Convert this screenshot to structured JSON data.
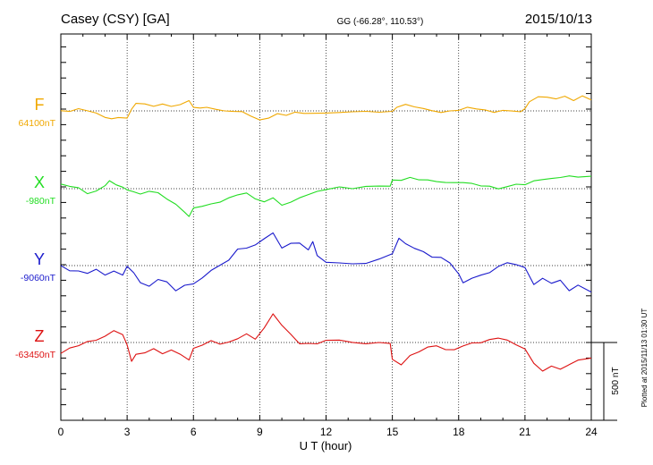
{
  "header": {
    "station": "Casey (CSY)  [GA]",
    "coords": "GG (-66.28°, 110.53°)",
    "date": "2015/10/13"
  },
  "footer": {
    "plotted": "Plotted at 2015/11/13 01:30 UT",
    "scale_label": "500 nT",
    "scale_nT": 500
  },
  "chart_data": {
    "type": "line",
    "xlabel": "U T (hour)",
    "xlim": [
      0,
      24
    ],
    "x_ticks": [
      0,
      3,
      6,
      9,
      12,
      15,
      18,
      21,
      24
    ],
    "x_tick_labels": [
      "0",
      "3",
      "6",
      "9",
      "12",
      "15",
      "18",
      "21",
      "24"
    ],
    "grid": true,
    "series": [
      {
        "name": "F",
        "baseline_label": "64100nT",
        "color": "#f0a800",
        "x": [
          0,
          0.4,
          0.8,
          1.2,
          1.6,
          2,
          2.3,
          2.6,
          3,
          3.2,
          3.4,
          3.8,
          4.2,
          4.6,
          5,
          5.4,
          5.8,
          6,
          6.3,
          6.6,
          7,
          7.4,
          7.8,
          8.2,
          8.6,
          9,
          9.4,
          9.8,
          10.2,
          10.6,
          11,
          11.4,
          12,
          12.6,
          13.2,
          13.8,
          14.4,
          15,
          15.2,
          15.6,
          16,
          16.4,
          16.8,
          17.2,
          17.6,
          18,
          18.4,
          18.8,
          19.2,
          19.6,
          20,
          20.4,
          20.8,
          21,
          21.2,
          21.6,
          22,
          22.4,
          22.8,
          23.2,
          23.6,
          24
        ],
        "y": [
          1,
          0,
          10,
          2,
          -20,
          -38,
          -50,
          -40,
          -45,
          5,
          50,
          40,
          35,
          45,
          30,
          40,
          60,
          25,
          15,
          30,
          10,
          0,
          -5,
          -10,
          -30,
          -60,
          -40,
          -20,
          -30,
          -10,
          -20,
          -10,
          -15,
          -5,
          -10,
          -5,
          -10,
          -5,
          30,
          40,
          30,
          10,
          0,
          -10,
          0,
          10,
          20,
          15,
          0,
          -10,
          5,
          0,
          0,
          10,
          60,
          85,
          90,
          80,
          95,
          70,
          90,
          70
        ]
      },
      {
        "name": "X",
        "baseline_label": "-980nT",
        "color": "#22dd22",
        "x": [
          0,
          0.4,
          0.8,
          1.2,
          1.6,
          2,
          2.2,
          2.5,
          2.8,
          3,
          3.3,
          3.6,
          4,
          4.4,
          4.8,
          5.2,
          5.6,
          5.8,
          6,
          6.4,
          6.8,
          7.2,
          7.6,
          8,
          8.4,
          8.8,
          9.2,
          9.6,
          10,
          10.4,
          10.8,
          11.2,
          11.6,
          12,
          12.6,
          13.2,
          13.8,
          14.4,
          14.9,
          15,
          15.4,
          15.8,
          16.2,
          16.6,
          17,
          17.4,
          17.8,
          18.2,
          18.6,
          19,
          19.4,
          19.8,
          20.2,
          20.6,
          21,
          21.4,
          21.8,
          22.2,
          22.6,
          23,
          23.4,
          24
        ],
        "y": [
          30,
          15,
          10,
          -30,
          -20,
          20,
          45,
          30,
          10,
          -5,
          -20,
          -40,
          -15,
          -30,
          -60,
          -100,
          -150,
          -180,
          -130,
          -110,
          -100,
          -80,
          -60,
          -40,
          -30,
          -70,
          -80,
          -60,
          -100,
          -90,
          -60,
          -40,
          -20,
          0,
          10,
          5,
          10,
          15,
          15,
          55,
          60,
          70,
          60,
          50,
          45,
          40,
          40,
          45,
          30,
          20,
          10,
          0,
          15,
          30,
          30,
          45,
          60,
          60,
          75,
          85,
          75,
          80
        ]
      },
      {
        "name": "Y",
        "baseline_label": "-9060nT",
        "color": "#1a1acc",
        "x": [
          0,
          0.4,
          0.8,
          1.2,
          1.6,
          2,
          2.4,
          2.8,
          3,
          3.3,
          3.6,
          4,
          4.4,
          4.8,
          5.2,
          5.6,
          6,
          6.4,
          6.8,
          7.2,
          7.6,
          8,
          8.4,
          8.8,
          9.2,
          9.6,
          10,
          10.4,
          10.8,
          11.2,
          11.4,
          11.6,
          12,
          12.6,
          13.2,
          13.8,
          14.4,
          15,
          15.3,
          15.6,
          16,
          16.4,
          16.8,
          17.2,
          17.6,
          18,
          18.2,
          18.6,
          19,
          19.4,
          19.8,
          20.2,
          20.6,
          21,
          21.4,
          21.8,
          22.2,
          22.6,
          23,
          23.4,
          24
        ],
        "y": [
          0,
          -40,
          -30,
          -50,
          -20,
          -60,
          -40,
          -60,
          -10,
          -40,
          -110,
          -130,
          -90,
          -110,
          -160,
          -130,
          -110,
          -80,
          -30,
          0,
          30,
          110,
          110,
          140,
          170,
          210,
          110,
          140,
          150,
          100,
          160,
          60,
          20,
          15,
          10,
          20,
          40,
          80,
          170,
          140,
          110,
          90,
          60,
          50,
          20,
          -60,
          -110,
          -80,
          -60,
          -40,
          -10,
          20,
          0,
          -10,
          -120,
          -80,
          -110,
          -100,
          -160,
          -130,
          -170
        ]
      },
      {
        "name": "Z",
        "baseline_label": "-63450nT",
        "color": "#dd1111",
        "x": [
          0,
          0.4,
          0.8,
          1.2,
          1.6,
          2,
          2.4,
          2.8,
          3,
          3.2,
          3.4,
          3.8,
          4.2,
          4.6,
          5,
          5.4,
          5.8,
          6,
          6.4,
          6.8,
          7.2,
          7.6,
          8,
          8.4,
          8.8,
          9.2,
          9.6,
          10,
          10.4,
          10.8,
          11.2,
          11.6,
          12,
          12.6,
          13.2,
          13.8,
          14.4,
          14.9,
          15,
          15.4,
          15.8,
          16.2,
          16.6,
          17,
          17.4,
          17.8,
          18.2,
          18.6,
          19,
          19.4,
          19.8,
          20.2,
          20.6,
          21,
          21.4,
          21.8,
          22.2,
          22.6,
          23,
          23.4,
          24
        ],
        "y": [
          -70,
          -40,
          -20,
          0,
          20,
          40,
          80,
          50,
          -20,
          -120,
          -80,
          -60,
          -40,
          -70,
          -50,
          -80,
          -110,
          -40,
          -10,
          10,
          -10,
          0,
          20,
          60,
          20,
          100,
          180,
          110,
          50,
          -10,
          0,
          -10,
          20,
          10,
          0,
          -10,
          0,
          0,
          -110,
          -140,
          -90,
          -60,
          -30,
          -20,
          -40,
          -50,
          -20,
          -10,
          0,
          20,
          30,
          20,
          -20,
          -40,
          -140,
          -180,
          -150,
          -170,
          -140,
          -120,
          -100
        ]
      }
    ]
  }
}
